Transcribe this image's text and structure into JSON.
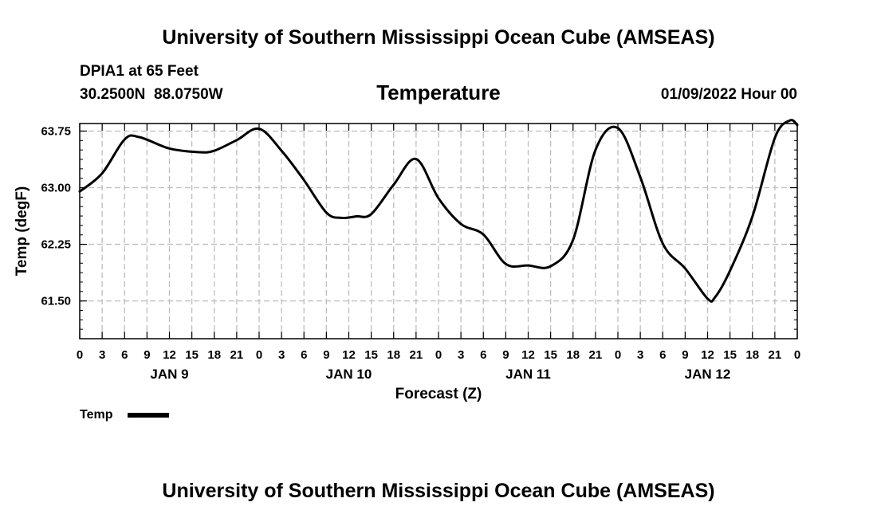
{
  "header": {
    "title_top": "University of Southern Mississippi Ocean Cube (AMSEAS)",
    "station": "DPIA1 at 65 Feet",
    "coords": "30.2500N  88.0750W",
    "date": "01/09/2022 Hour 00",
    "title_bottom": "University of Southern Mississippi Ocean Cube (AMSEAS)"
  },
  "colors": {
    "line": "#000000",
    "grid": "#bdbdbd",
    "background": "#ffffff"
  },
  "chart_data": {
    "type": "line",
    "title": "Temperature",
    "xlabel": "Forecast (Z)",
    "ylabel": "Temp (degF)",
    "xlim": [
      0,
      96
    ],
    "ylim": [
      61.0,
      63.85
    ],
    "yticks": [
      61.5,
      62.25,
      63.0,
      63.75
    ],
    "ytick_labels": [
      "61.50",
      "62.25",
      "63.00",
      "63.75"
    ],
    "xticks": [
      0,
      3,
      6,
      9,
      12,
      15,
      18,
      21,
      24,
      27,
      30,
      33,
      36,
      39,
      42,
      45,
      48,
      51,
      54,
      57,
      60,
      63,
      66,
      69,
      72,
      75,
      78,
      81,
      84,
      87,
      90,
      93,
      96
    ],
    "xtick_labels": [
      "0",
      "3",
      "6",
      "9",
      "12",
      "15",
      "18",
      "21",
      "0",
      "3",
      "6",
      "9",
      "12",
      "15",
      "18",
      "21",
      "0",
      "3",
      "6",
      "9",
      "12",
      "15",
      "18",
      "21",
      "0",
      "3",
      "6",
      "9",
      "12",
      "15",
      "18",
      "21",
      "0"
    ],
    "day_labels": [
      {
        "label": "JAN 9",
        "x": 12
      },
      {
        "label": "JAN 10",
        "x": 36
      },
      {
        "label": "JAN 11",
        "x": 60
      },
      {
        "label": "JAN 12",
        "x": 84
      }
    ],
    "grid": true,
    "legend": {
      "label": "Temp",
      "placement": "bottom-left"
    },
    "series": [
      {
        "name": "Temp",
        "x": [
          0,
          3,
          6,
          8,
          12,
          16,
          18,
          21,
          24,
          27,
          30,
          33,
          35,
          37,
          39,
          42,
          45,
          48,
          51,
          54,
          57,
          60,
          63,
          66,
          69,
          72,
          75,
          78,
          81,
          84,
          85,
          87,
          90,
          93,
          95,
          96
        ],
        "values": [
          62.95,
          63.19,
          63.64,
          63.67,
          63.52,
          63.47,
          63.49,
          63.63,
          63.78,
          63.49,
          63.1,
          62.67,
          62.6,
          62.62,
          62.65,
          63.04,
          63.38,
          62.86,
          62.52,
          62.38,
          61.99,
          61.97,
          61.96,
          62.31,
          63.5,
          63.79,
          63.14,
          62.26,
          61.93,
          61.53,
          61.55,
          61.9,
          62.62,
          63.66,
          63.89,
          63.83
        ]
      }
    ]
  }
}
